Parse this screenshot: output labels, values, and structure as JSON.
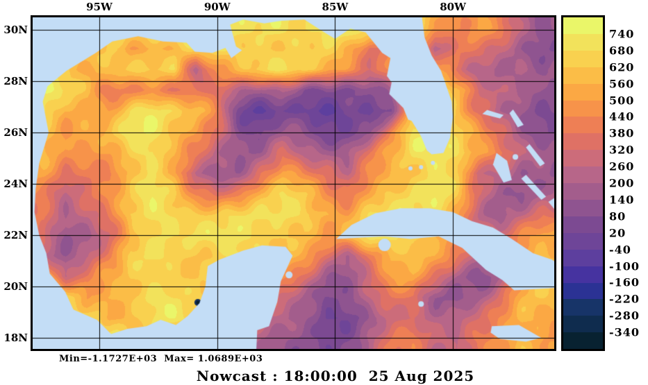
{
  "figure": {
    "caption": "Nowcast : 18:00:00  25 Aug 2025",
    "stats": "Min=-1.1727E+03  Max= 1.0689E+03"
  },
  "axes": {
    "lon_ticks": [
      {
        "label": "95W",
        "lon": -95
      },
      {
        "label": "90W",
        "lon": -90
      },
      {
        "label": "85W",
        "lon": -85
      },
      {
        "label": "80W",
        "lon": -80
      }
    ],
    "lat_ticks": [
      {
        "label": "30N",
        "lat": 30
      },
      {
        "label": "28N",
        "lat": 28
      },
      {
        "label": "26N",
        "lat": 26
      },
      {
        "label": "24N",
        "lat": 24
      },
      {
        "label": "22N",
        "lat": 22
      },
      {
        "label": "20N",
        "lat": 20
      },
      {
        "label": "18N",
        "lat": 18
      }
    ]
  },
  "colorbar": {
    "tick_labels": [
      "740",
      "680",
      "620",
      "560",
      "500",
      "440",
      "380",
      "320",
      "260",
      "200",
      "140",
      "80",
      "20",
      "-40",
      "-100",
      "-160",
      "-220",
      "-280",
      "-340"
    ],
    "palette": [
      "#eaf669",
      "#f2e25b",
      "#f9d14f",
      "#fbbd47",
      "#fba844",
      "#f7934a",
      "#ee7f55",
      "#df7165",
      "#cc6c7a",
      "#b76689",
      "#a35d8c",
      "#8f5490",
      "#7c4a92",
      "#6e4598",
      "#5d3f9e",
      "#4633a0",
      "#2b3294",
      "#173468",
      "#0f2c4e",
      "#082231"
    ]
  },
  "chart_data": {
    "type": "heatmap",
    "title": "Nowcast : 18:00:00  25 Aug 2025",
    "lon_range": [
      -97.9,
      -75.6
    ],
    "lat_range": [
      17.5,
      30.6
    ],
    "value_min": -1172.7,
    "value_max": 1068.9,
    "contour_interval": 60,
    "colorbar_top_value": 740,
    "colorbar_bottom_value": -340,
    "land_color": "#c3ddf6",
    "grid_order": "rows north to south, cols west to east; values are color-level indices 0(<-340, darkest) .. 19(>740, brightest)",
    "grid_levels": [
      [
        18,
        18,
        18,
        18,
        18,
        18,
        18,
        18,
        18,
        18,
        18,
        18,
        18,
        18,
        18,
        18,
        18,
        17,
        15,
        14,
        15,
        13,
        10,
        8
      ],
      [
        18,
        18,
        18,
        17,
        14,
        15,
        16,
        17,
        18,
        18,
        17,
        16,
        17,
        17,
        15,
        12,
        15,
        18,
        9,
        13,
        12,
        10,
        9,
        8
      ],
      [
        18,
        16,
        15,
        16,
        16,
        17,
        18,
        10,
        14,
        16,
        17,
        17,
        17,
        16,
        14,
        12,
        14,
        18,
        15,
        12,
        10,
        9,
        10,
        9
      ],
      [
        18,
        17,
        16,
        13,
        13,
        14,
        13,
        12,
        11,
        10,
        9,
        10,
        8,
        8,
        7,
        7,
        9,
        18,
        18,
        17,
        12,
        10,
        9,
        8
      ],
      [
        18,
        15,
        16,
        15,
        17,
        18,
        17,
        16,
        13,
        7,
        6,
        6,
        6,
        5,
        6,
        6,
        8,
        18,
        18,
        16,
        12,
        9,
        8,
        8
      ],
      [
        17,
        14,
        15,
        16,
        18,
        18,
        17,
        15,
        12,
        8,
        7,
        8,
        8,
        7,
        7,
        8,
        14,
        18,
        18,
        17,
        15,
        12,
        9,
        8
      ],
      [
        16,
        13,
        14,
        15,
        17,
        18,
        16,
        13,
        9,
        8,
        9,
        12,
        10,
        10,
        9,
        12,
        15,
        18,
        18,
        18,
        16,
        13,
        10,
        9
      ],
      [
        15,
        12,
        13,
        14,
        16,
        17,
        15,
        10,
        8,
        9,
        13,
        15,
        13,
        12,
        10,
        13,
        16,
        17,
        18,
        17,
        11,
        10,
        8,
        9
      ],
      [
        14,
        10,
        12,
        14,
        16,
        18,
        17,
        14,
        12,
        13,
        16,
        17,
        16,
        14,
        13,
        15,
        17,
        18,
        18,
        16,
        12,
        9,
        8,
        10
      ],
      [
        13,
        9,
        10,
        13,
        17,
        18,
        18,
        17,
        16,
        17,
        18,
        18,
        17,
        16,
        15,
        17,
        18,
        18,
        17,
        15,
        11,
        9,
        10,
        12
      ],
      [
        12,
        8,
        9,
        12,
        16,
        17,
        17,
        18,
        18,
        18,
        18,
        17,
        16,
        14,
        16,
        18,
        18,
        18,
        16,
        14,
        12,
        11,
        13,
        15
      ],
      [
        11,
        9,
        10,
        13,
        17,
        17,
        17,
        17,
        17,
        18,
        17,
        16,
        14,
        12,
        10,
        13,
        16,
        17,
        15,
        12,
        10,
        12,
        15,
        16
      ],
      [
        18,
        10,
        12,
        15,
        17,
        17,
        17,
        17,
        17,
        17,
        16,
        14,
        12,
        9,
        9,
        11,
        14,
        15,
        12,
        9,
        8,
        10,
        14,
        16
      ],
      [
        18,
        18,
        14,
        16,
        17,
        18,
        17,
        17,
        16,
        15,
        14,
        12,
        9,
        7,
        8,
        10,
        12,
        13,
        9,
        8,
        9,
        12,
        15,
        16
      ],
      [
        18,
        18,
        18,
        15,
        16,
        17,
        18,
        17,
        14,
        12,
        11,
        10,
        8,
        6,
        7,
        9,
        11,
        12,
        10,
        9,
        11,
        14,
        16,
        15
      ],
      [
        18,
        18,
        18,
        18,
        17,
        16,
        15,
        14,
        12,
        10,
        9,
        9,
        8,
        7,
        8,
        10,
        12,
        13,
        11,
        10,
        13,
        15,
        16,
        14
      ]
    ]
  },
  "map": {
    "min_spot": {
      "lon": -90.82,
      "lat": 19.38
    },
    "land_polygons": [
      {
        "name": "north-america-mexico",
        "points": [
          [
            -81.35,
            30.75
          ],
          [
            -81.2,
            29.7
          ],
          [
            -80.9,
            29.0
          ],
          [
            -80.5,
            28.4
          ],
          [
            -80.05,
            27.2
          ],
          [
            -80.0,
            26.6
          ],
          [
            -80.12,
            25.8
          ],
          [
            -80.4,
            25.2
          ],
          [
            -80.9,
            25.15
          ],
          [
            -81.1,
            25.3
          ],
          [
            -81.35,
            25.85
          ],
          [
            -81.75,
            26.45
          ],
          [
            -81.9,
            26.5
          ],
          [
            -82.1,
            26.95
          ],
          [
            -82.7,
            27.5
          ],
          [
            -82.6,
            27.95
          ],
          [
            -82.8,
            28.2
          ],
          [
            -82.65,
            28.9
          ],
          [
            -83.0,
            29.1
          ],
          [
            -83.7,
            29.9
          ],
          [
            -84.35,
            30.05
          ],
          [
            -85.0,
            29.65
          ],
          [
            -85.45,
            29.9
          ],
          [
            -86.3,
            30.4
          ],
          [
            -87.3,
            30.35
          ],
          [
            -88.0,
            30.25
          ],
          [
            -88.9,
            30.4
          ],
          [
            -89.45,
            30.2
          ],
          [
            -89.2,
            29.35
          ],
          [
            -88.95,
            29.2
          ],
          [
            -89.4,
            28.9
          ],
          [
            -89.65,
            29.3
          ],
          [
            -90.2,
            29.1
          ],
          [
            -90.95,
            29.15
          ],
          [
            -91.3,
            29.5
          ],
          [
            -92.3,
            29.55
          ],
          [
            -93.35,
            29.75
          ],
          [
            -94.45,
            29.55
          ],
          [
            -95.15,
            29.1
          ],
          [
            -96.4,
            28.4
          ],
          [
            -97.2,
            27.8
          ],
          [
            -97.4,
            27.2
          ],
          [
            -97.15,
            26.0
          ],
          [
            -97.55,
            24.8
          ],
          [
            -97.7,
            23.8
          ],
          [
            -97.75,
            22.9
          ],
          [
            -97.55,
            22.0
          ],
          [
            -97.25,
            21.3
          ],
          [
            -97.1,
            20.5
          ],
          [
            -96.45,
            19.8
          ],
          [
            -96.1,
            19.1
          ],
          [
            -95.1,
            18.7
          ],
          [
            -94.5,
            18.15
          ],
          [
            -93.8,
            18.35
          ],
          [
            -93.0,
            18.45
          ],
          [
            -92.4,
            18.7
          ],
          [
            -91.75,
            18.5
          ],
          [
            -91.25,
            18.85
          ],
          [
            -90.75,
            19.35
          ],
          [
            -90.5,
            20.0
          ],
          [
            -90.4,
            20.8
          ],
          [
            -89.9,
            21.05
          ],
          [
            -88.9,
            21.4
          ],
          [
            -88.1,
            21.6
          ],
          [
            -87.1,
            21.55
          ],
          [
            -86.8,
            21.2
          ],
          [
            -87.3,
            20.2
          ],
          [
            -87.45,
            19.4
          ],
          [
            -87.8,
            18.45
          ],
          [
            -88.3,
            18.3
          ],
          [
            -88.35,
            17.3
          ],
          [
            -98.2,
            17.3
          ],
          [
            -98.2,
            30.75
          ]
        ]
      },
      {
        "name": "cuba",
        "points": [
          [
            -84.95,
            21.85
          ],
          [
            -84.3,
            22.4
          ],
          [
            -83.3,
            22.85
          ],
          [
            -82.2,
            23.05
          ],
          [
            -81.0,
            23.05
          ],
          [
            -80.0,
            22.9
          ],
          [
            -79.2,
            22.55
          ],
          [
            -78.3,
            22.3
          ],
          [
            -77.5,
            21.85
          ],
          [
            -76.6,
            21.3
          ],
          [
            -75.8,
            21.05
          ],
          [
            -75.4,
            20.8
          ],
          [
            -75.4,
            19.95
          ],
          [
            -76.5,
            19.9
          ],
          [
            -77.4,
            19.85
          ],
          [
            -77.9,
            20.25
          ],
          [
            -78.6,
            20.65
          ],
          [
            -79.6,
            21.5
          ],
          [
            -80.6,
            21.95
          ],
          [
            -81.8,
            21.85
          ],
          [
            -82.9,
            21.95
          ],
          [
            -84.0,
            21.9
          ]
        ]
      },
      {
        "name": "jamaica",
        "points": [
          [
            -78.35,
            18.45
          ],
          [
            -77.2,
            18.5
          ],
          [
            -76.25,
            18.0
          ],
          [
            -76.9,
            17.85
          ],
          [
            -78.0,
            17.95
          ],
          [
            -78.4,
            18.2
          ]
        ]
      },
      {
        "name": "grand-bahama",
        "points": [
          [
            -78.75,
            26.72
          ],
          [
            -78.0,
            26.55
          ],
          [
            -77.85,
            26.68
          ],
          [
            -78.55,
            26.88
          ]
        ]
      },
      {
        "name": "abaco",
        "points": [
          [
            -77.45,
            26.9
          ],
          [
            -77.0,
            26.3
          ],
          [
            -77.25,
            26.2
          ],
          [
            -77.6,
            26.75
          ]
        ]
      },
      {
        "name": "andros",
        "points": [
          [
            -78.15,
            25.2
          ],
          [
            -77.7,
            24.9
          ],
          [
            -77.5,
            24.15
          ],
          [
            -77.85,
            24.05
          ],
          [
            -78.3,
            24.75
          ]
        ]
      },
      {
        "name": "eleuthera",
        "points": [
          [
            -76.75,
            25.55
          ],
          [
            -76.1,
            24.8
          ],
          [
            -76.3,
            24.68
          ],
          [
            -76.9,
            25.42
          ]
        ]
      },
      {
        "name": "exuma",
        "points": [
          [
            -76.9,
            24.35
          ],
          [
            -76.05,
            23.5
          ],
          [
            -76.25,
            23.38
          ],
          [
            -77.1,
            24.2
          ]
        ]
      },
      {
        "name": "long-island",
        "points": [
          [
            -75.7,
            23.45
          ],
          [
            -75.25,
            22.9
          ],
          [
            -75.5,
            22.8
          ],
          [
            -75.95,
            23.3
          ]
        ]
      }
    ],
    "islands": [
      {
        "name": "isla-juventud",
        "lon": -82.9,
        "lat": 21.62,
        "r": 9
      },
      {
        "name": "cozumel",
        "lon": -86.95,
        "lat": 20.45,
        "r": 5
      },
      {
        "name": "grand-cayman",
        "lon": -81.35,
        "lat": 19.32,
        "r": 4
      },
      {
        "name": "new-providence",
        "lon": -77.35,
        "lat": 25.05,
        "r": 4
      },
      {
        "name": "florida-key-1",
        "lon": -81.8,
        "lat": 24.6,
        "r": 3
      },
      {
        "name": "florida-key-2",
        "lon": -81.35,
        "lat": 24.65,
        "r": 3
      },
      {
        "name": "florida-key-3",
        "lon": -80.85,
        "lat": 24.82,
        "r": 3
      }
    ]
  }
}
